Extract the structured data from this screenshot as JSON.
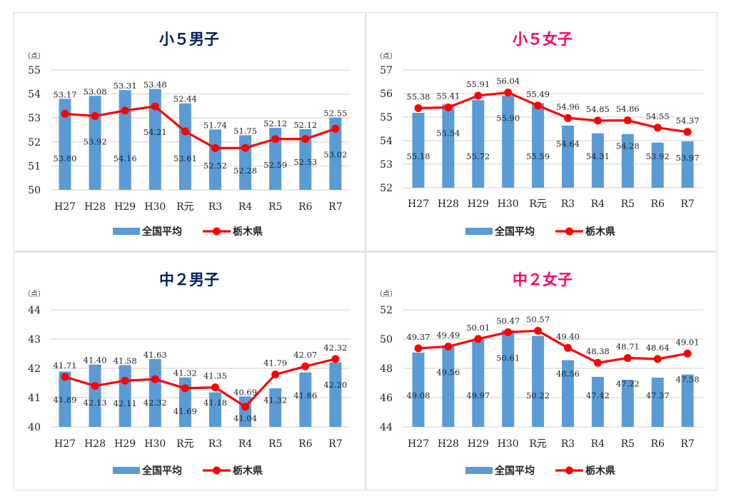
{
  "colors": {
    "bar": "#5b9bd5",
    "line": "#ff0000",
    "grid": "#e0e0e0",
    "title_boys": "#002060",
    "title_girls": "#ff0066"
  },
  "chart_data": [
    {
      "type": "bar+line",
      "title": "小５男子",
      "title_color": "title_boys",
      "ylabel": "（点）",
      "ylim": [
        50,
        55
      ],
      "yticks": [
        "50",
        "51",
        "52",
        "53",
        "54",
        "55"
      ],
      "categories": [
        "H27",
        "H28",
        "H29",
        "H30",
        "R元",
        "R3",
        "R4",
        "R5",
        "R6",
        "R7"
      ],
      "series": [
        {
          "name": "全国平均",
          "type": "bar",
          "values": [
            53.8,
            53.92,
            54.16,
            54.21,
            53.61,
            52.52,
            52.28,
            52.59,
            52.53,
            53.02
          ],
          "labels": [
            "53.80",
            "53.92",
            "54.16",
            "54.21",
            "53.61",
            "52.52",
            "52.28",
            "52.59",
            "52.53",
            "53.02"
          ]
        },
        {
          "name": "栃木県",
          "type": "line",
          "values": [
            53.17,
            53.08,
            53.31,
            53.48,
            52.44,
            51.74,
            51.75,
            52.12,
            52.12,
            52.55
          ],
          "labels": [
            "53.17",
            "53.08",
            "53.31",
            "53.48",
            "52.44",
            "51.74",
            "51.75",
            "52.12",
            "52.12",
            "52.55"
          ]
        }
      ],
      "legend": "bottom",
      "grid": true
    },
    {
      "type": "bar+line",
      "title": "小５女子",
      "title_color": "title_girls",
      "ylabel": "（点）",
      "ylim": [
        52,
        57
      ],
      "yticks": [
        "52",
        "53",
        "54",
        "55",
        "56",
        "57"
      ],
      "categories": [
        "H27",
        "H28",
        "H29",
        "H30",
        "R元",
        "R3",
        "R4",
        "R5",
        "R6",
        "R7"
      ],
      "series": [
        {
          "name": "全国平均",
          "type": "bar",
          "values": [
            55.18,
            55.54,
            55.72,
            55.9,
            55.59,
            54.64,
            54.31,
            54.28,
            53.92,
            53.97
          ],
          "labels": [
            "55.18",
            "55.54",
            "55.72",
            "55.90",
            "55.59",
            "54.64",
            "54.31",
            "54.28",
            "53.92",
            "53.97"
          ]
        },
        {
          "name": "栃木県",
          "type": "line",
          "values": [
            55.38,
            55.41,
            55.91,
            56.04,
            55.49,
            54.96,
            54.85,
            54.86,
            54.55,
            54.37
          ],
          "labels": [
            "55.38",
            "55.41",
            "55.91",
            "56.04",
            "55.49",
            "54.96",
            "54.85",
            "54.86",
            "54.55",
            "54.37"
          ]
        }
      ],
      "legend": "bottom",
      "grid": true
    },
    {
      "type": "bar+line",
      "title": "中２男子",
      "title_color": "title_boys",
      "ylabel": "（点）",
      "ylim": [
        40,
        44
      ],
      "yticks": [
        "40",
        "41",
        "42",
        "43",
        "44"
      ],
      "categories": [
        "H27",
        "H28",
        "H29",
        "H30",
        "R元",
        "R3",
        "R4",
        "R5",
        "R6",
        "R7"
      ],
      "series": [
        {
          "name": "全国平均",
          "type": "bar",
          "values": [
            41.89,
            42.13,
            42.11,
            42.32,
            41.69,
            41.18,
            41.04,
            41.32,
            41.86,
            42.2
          ],
          "labels": [
            "41.89",
            "42.13",
            "42.11",
            "42.32",
            "41.69",
            "41.18",
            "41.04",
            "41.32",
            "41.86",
            "42.20"
          ]
        },
        {
          "name": "栃木県",
          "type": "line",
          "values": [
            41.71,
            41.4,
            41.58,
            41.63,
            41.32,
            41.35,
            40.69,
            41.79,
            42.07,
            42.32
          ],
          "labels": [
            "41.71",
            "41.40",
            "41.58",
            "41.63",
            "41.32",
            "41.35",
            "40.69",
            "41.79",
            "42.07",
            "42.32"
          ]
        }
      ],
      "legend": "bottom",
      "grid": true
    },
    {
      "type": "bar+line",
      "title": "中２女子",
      "title_color": "title_girls",
      "ylabel": "（点）",
      "ylim": [
        44,
        52
      ],
      "yticks": [
        "44",
        "46",
        "48",
        "50",
        "52"
      ],
      "categories": [
        "H27",
        "H28",
        "H29",
        "H30",
        "R元",
        "R3",
        "R4",
        "R5",
        "R6",
        "R7"
      ],
      "series": [
        {
          "name": "全国平均",
          "type": "bar",
          "values": [
            49.08,
            49.56,
            49.97,
            50.61,
            50.22,
            48.56,
            47.42,
            47.22,
            47.37,
            47.58
          ],
          "labels": [
            "49.08",
            "49.56",
            "49.97",
            "50.61",
            "50.22",
            "48.56",
            "47.42",
            "47.22",
            "47.37",
            "47.58"
          ]
        },
        {
          "name": "栃木県",
          "type": "line",
          "values": [
            49.37,
            49.49,
            50.01,
            50.47,
            50.57,
            49.4,
            48.38,
            48.71,
            48.64,
            49.01
          ],
          "labels": [
            "49.37",
            "49.49",
            "50.01",
            "50.47",
            "50.57",
            "49.40",
            "48.38",
            "48.71",
            "48.64",
            "49.01"
          ]
        }
      ],
      "legend": "bottom",
      "grid": true
    }
  ]
}
